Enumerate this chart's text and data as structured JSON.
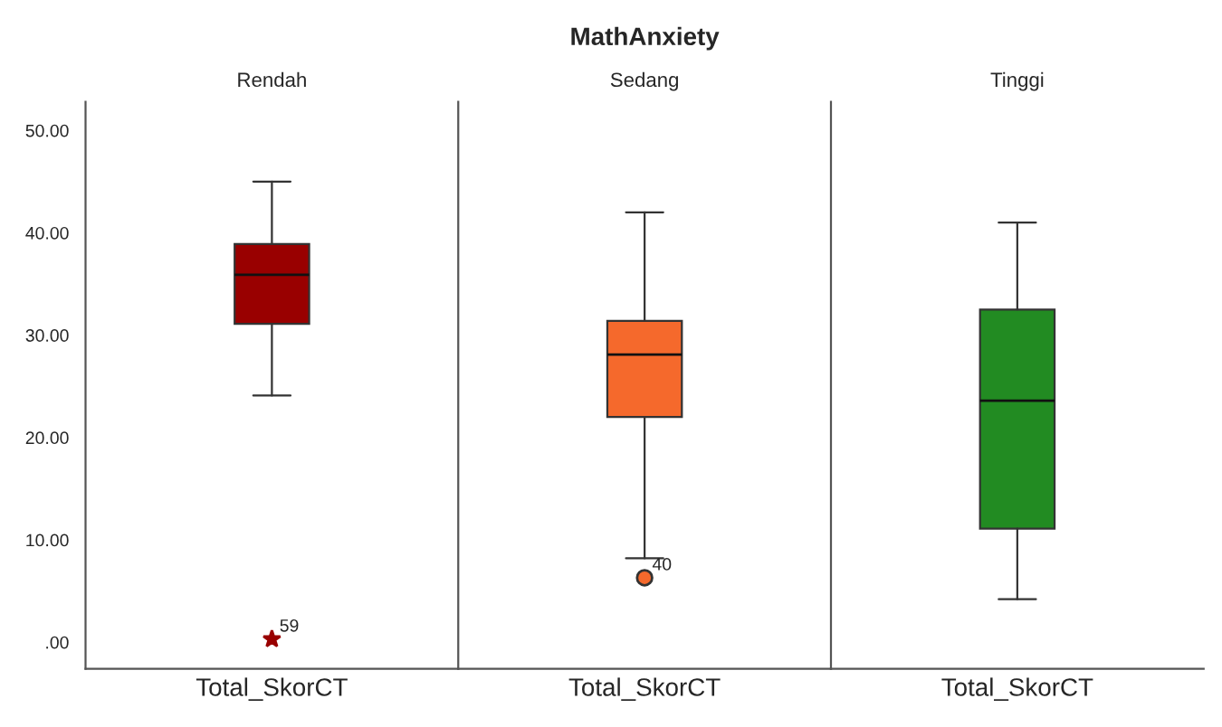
{
  "chart_data": [
    {
      "type": "box",
      "subtitle": "Rendah",
      "categories": [
        "Total_SkorCT"
      ],
      "color": "#990000",
      "marker": "star",
      "boxes": [
        {
          "low": 24.1,
          "q1": 31.1,
          "median": 35.9,
          "q3": 38.9,
          "high": 45.0,
          "outliers": [
            0.3
          ]
        }
      ],
      "ylim": [
        -2.6,
        52.8
      ],
      "yticks": [
        {
          "value": 0,
          "label": ".00"
        },
        {
          "value": 10,
          "label": "10.00"
        },
        {
          "value": 20,
          "label": "20.00"
        },
        {
          "value": 30,
          "label": "30.00"
        },
        {
          "value": 40,
          "label": "40.00"
        },
        {
          "value": 50,
          "label": "50.00"
        }
      ],
      "annotations": [
        "59"
      ],
      "grid": false,
      "legend": false
    },
    {
      "type": "box",
      "title": "MathAnxiety",
      "subtitle": "Sedang",
      "categories": [
        "Total_SkorCT"
      ],
      "color": "#f5692c",
      "marker": "circle",
      "boxes": [
        {
          "low": 8.2,
          "q1": 22.0,
          "median": 28.1,
          "q3": 31.4,
          "high": 42.0,
          "outliers": [
            6.3
          ]
        }
      ],
      "ylim": [
        -2.6,
        52.8
      ],
      "tick_labels": "x",
      "annotations": [
        "40"
      ],
      "grid": false,
      "legend": false
    },
    {
      "type": "box",
      "subtitle": "Tinggi",
      "categories": [
        "Total_SkorCT"
      ],
      "color": "#228b22",
      "boxes": [
        {
          "low": 4.2,
          "q1": 11.1,
          "median": 23.6,
          "q3": 32.5,
          "high": 41.0
        }
      ],
      "ylim": [
        -2.6,
        52.8
      ],
      "tick_labels": "x",
      "grid": false,
      "legend": false
    }
  ]
}
